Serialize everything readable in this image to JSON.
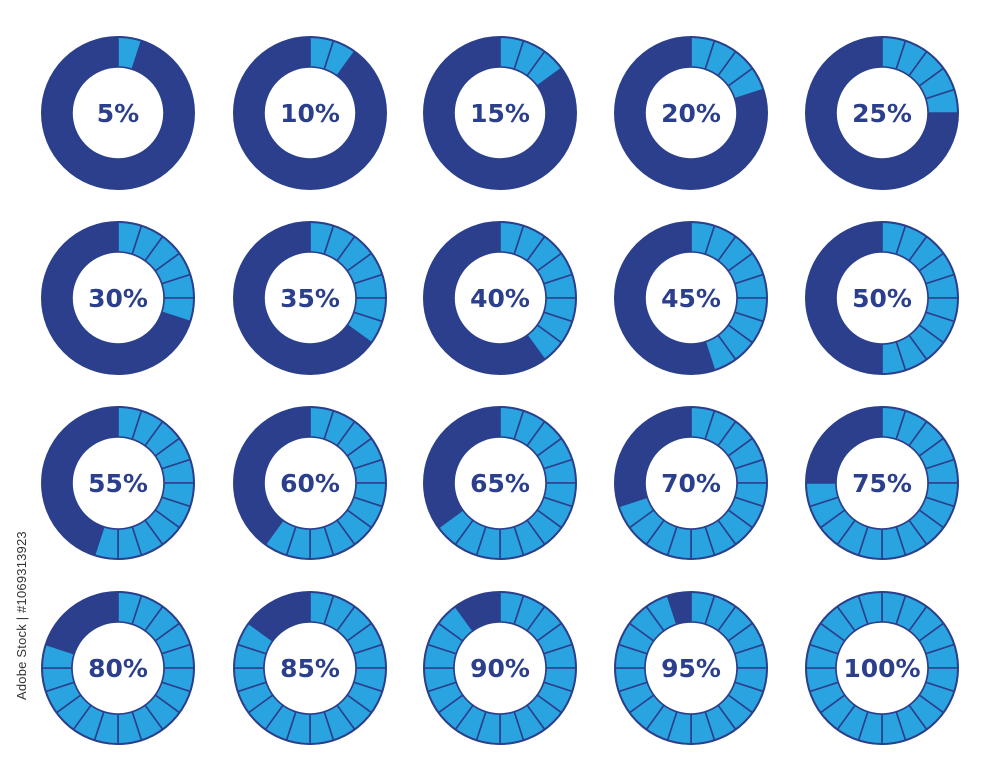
{
  "colors": {
    "dark": "#2b3f8c",
    "light": "#2aa4e0",
    "outline": "#2b3f8c",
    "label": "#2b3f8c",
    "center": "#ffffff"
  },
  "segments_per_ring": 20,
  "rings": [
    {
      "label": "5%",
      "value": 5
    },
    {
      "label": "10%",
      "value": 10
    },
    {
      "label": "15%",
      "value": 15
    },
    {
      "label": "20%",
      "value": 20
    },
    {
      "label": "25%",
      "value": 25
    },
    {
      "label": "30%",
      "value": 30
    },
    {
      "label": "35%",
      "value": 35
    },
    {
      "label": "40%",
      "value": 40
    },
    {
      "label": "45%",
      "value": 45
    },
    {
      "label": "50%",
      "value": 50
    },
    {
      "label": "55%",
      "value": 55
    },
    {
      "label": "60%",
      "value": 60
    },
    {
      "label": "65%",
      "value": 65
    },
    {
      "label": "70%",
      "value": 70
    },
    {
      "label": "75%",
      "value": 75
    },
    {
      "label": "80%",
      "value": 80
    },
    {
      "label": "85%",
      "value": 85
    },
    {
      "label": "90%",
      "value": 90
    },
    {
      "label": "95%",
      "value": 95
    },
    {
      "label": "100%",
      "value": 100
    }
  ],
  "side_text": "Adobe Stock | #1069313923"
}
